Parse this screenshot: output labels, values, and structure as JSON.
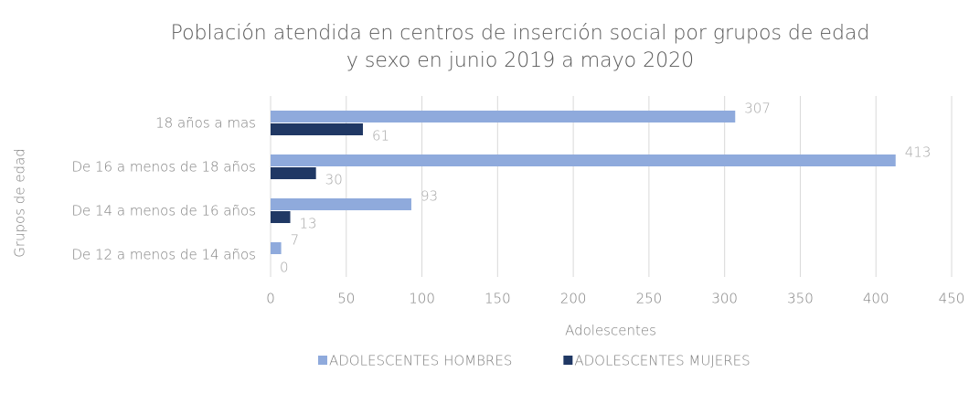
{
  "chart_data": {
    "type": "bar",
    "orientation": "horizontal",
    "title": [
      "Población atendida en centros de inserción social por grupos de edad",
      "y sexo en junio 2019 a mayo 2020"
    ],
    "x_label": "Adolescentes",
    "y_label": "Grupos de edad",
    "categories": [
      "18 años a mas",
      "De 16 a menos de 18 años",
      "De 14 a menos de 16 años",
      "De 12 a menos de 14 años"
    ],
    "series": [
      {
        "name": "ADOLESCENTES HOMBRES",
        "color": "#8faadc",
        "values": [
          307,
          413,
          93,
          7
        ]
      },
      {
        "name": "ADOLESCENTES MUJERES",
        "color": "#203864",
        "values": [
          61,
          30,
          13,
          0
        ]
      }
    ],
    "xlim": [
      0,
      450
    ],
    "xticks": [
      0,
      50,
      100,
      150,
      200,
      250,
      300,
      350,
      400,
      450
    ],
    "grid": true,
    "legend": "bottom"
  }
}
